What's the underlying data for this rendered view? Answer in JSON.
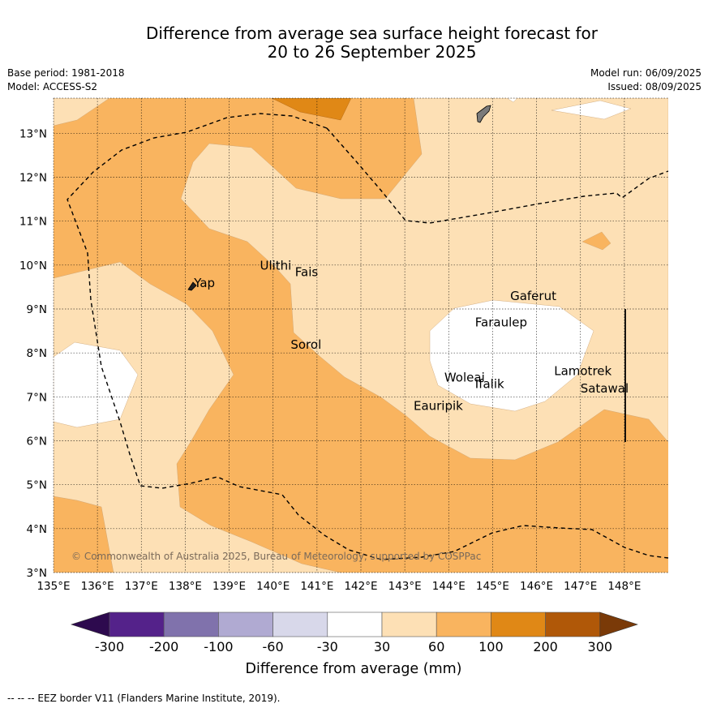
{
  "title": {
    "line1": "Difference from average sea surface height forecast for",
    "line2": "20 to 26 September 2025"
  },
  "meta": {
    "base_period": "Base period: 1981-2018",
    "model": "Model: ACCESS-S2",
    "model_run": "Model run: 06/09/2025",
    "issued": "Issued: 08/09/2025"
  },
  "map": {
    "lon_range": [
      135,
      149
    ],
    "lat_range": [
      3,
      13.8
    ],
    "lon_ticks": [
      "135°E",
      "136°E",
      "137°E",
      "138°E",
      "139°E",
      "140°E",
      "141°E",
      "142°E",
      "143°E",
      "144°E",
      "145°E",
      "146°E",
      "147°E",
      "148°E"
    ],
    "lat_ticks": [
      "3°N",
      "4°N",
      "5°N",
      "6°N",
      "7°N",
      "8°N",
      "9°N",
      "10°N",
      "11°N",
      "12°N",
      "13°N"
    ],
    "places": [
      {
        "name": "Yap",
        "lon": 138.2,
        "lat": 9.5
      },
      {
        "name": "Ulithi",
        "lon": 139.7,
        "lat": 9.9
      },
      {
        "name": "Fais",
        "lon": 140.5,
        "lat": 9.75
      },
      {
        "name": "Sorol",
        "lon": 140.4,
        "lat": 8.1
      },
      {
        "name": "Gaferut",
        "lon": 145.4,
        "lat": 9.2
      },
      {
        "name": "Faraulep",
        "lon": 144.6,
        "lat": 8.6
      },
      {
        "name": "Woleai",
        "lon": 143.9,
        "lat": 7.35
      },
      {
        "name": "Ifalik",
        "lon": 144.6,
        "lat": 7.2
      },
      {
        "name": "Lamotrek",
        "lon": 146.4,
        "lat": 7.5
      },
      {
        "name": "Satawal",
        "lon": 147.0,
        "lat": 7.1
      },
      {
        "name": "Eauripik",
        "lon": 143.2,
        "lat": 6.7
      }
    ],
    "copyright": "© Commonwealth of Australia 2025, Bureau of Meteorology, supported by COSPPac"
  },
  "colorbar": {
    "label": "Difference from average (mm)",
    "ticks": [
      "-300",
      "-200",
      "-100",
      "-60",
      "-30",
      "30",
      "60",
      "100",
      "200",
      "300"
    ],
    "colors": {
      "below_-300": "#2d0a4e",
      "-300_-200": "#54228a",
      "-200_-100": "#8072ac",
      "-100_-60": "#b0aad2",
      "-60_-30": "#d8d8ea",
      "-30_30": "#ffffff",
      "30_60": "#fde0b5",
      "60_100": "#f9b45f",
      "100_200": "#e08816",
      "200_300": "#b05808",
      "above_300": "#7a3a08"
    }
  },
  "footer": "--  --  -- EEZ border V11 (Flanders Marine Institute, 2019)."
}
